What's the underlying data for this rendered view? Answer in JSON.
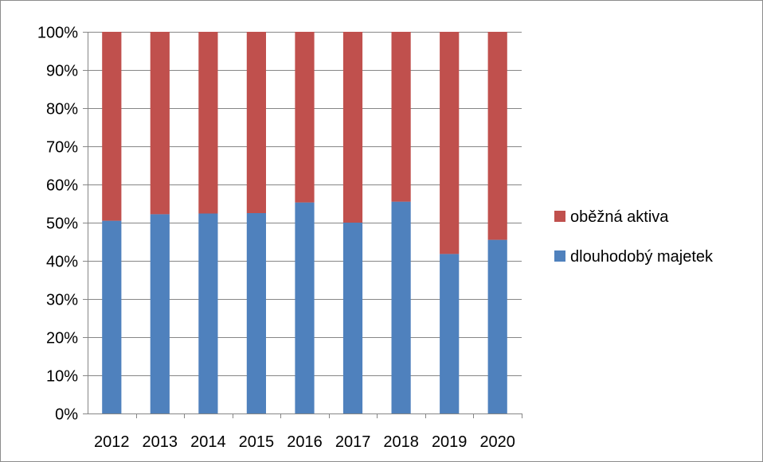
{
  "chart_data": {
    "type": "bar",
    "stacked": true,
    "percent_stacked": true,
    "categories": [
      "2012",
      "2013",
      "2014",
      "2015",
      "2016",
      "2017",
      "2018",
      "2019",
      "2020"
    ],
    "series": [
      {
        "name": "dlouhodobý majetek",
        "color": "#4f81bd",
        "values": [
          50.5,
          52.2,
          52.4,
          52.5,
          55.3,
          50.0,
          55.5,
          41.8,
          45.5
        ]
      },
      {
        "name": "oběžná aktiva",
        "color": "#c0504d",
        "values": [
          49.5,
          47.8,
          47.6,
          47.5,
          44.7,
          50.0,
          44.5,
          58.2,
          54.5
        ]
      }
    ],
    "yticks": [
      "0%",
      "10%",
      "20%",
      "30%",
      "40%",
      "50%",
      "60%",
      "70%",
      "80%",
      "90%",
      "100%"
    ],
    "ylim": [
      0,
      100
    ],
    "grid": true,
    "legend_position": "right",
    "legend_order": [
      "oběžná aktiva",
      "dlouhodobý majetek"
    ]
  }
}
